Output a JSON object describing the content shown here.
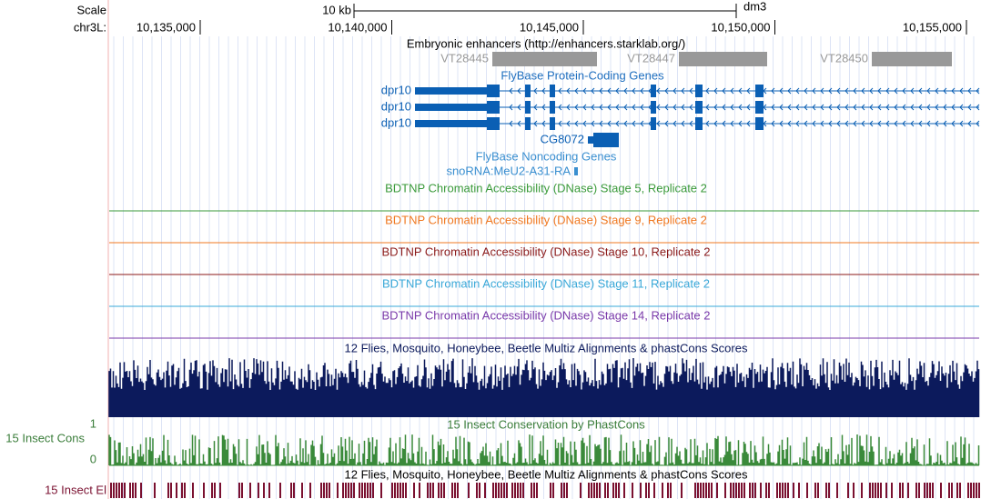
{
  "header": {
    "scale_label": "Scale",
    "chrom_label": "chr3L:",
    "scale_text": "10 kb",
    "assembly": "dm3"
  },
  "ruler": {
    "positions": [
      "10,135,000",
      "10,140,000",
      "10,145,000",
      "10,150,000",
      "10,155,000"
    ]
  },
  "enhancers": {
    "title": "Embryonic enhancers (http://enhancers.starklab.org/)",
    "items": [
      "VT28445",
      "VT28447",
      "VT28450"
    ]
  },
  "genes": {
    "coding_title": "FlyBase Protein-Coding Genes",
    "coding": [
      "dpr10",
      "dpr10",
      "dpr10",
      "CG8072"
    ],
    "noncoding_title": "FlyBase Noncoding Genes",
    "noncoding": [
      "snoRNA:MeU2-A31-RA"
    ]
  },
  "dnase_tracks": [
    {
      "label": "BDTNP Chromatin Accessibility (DNase) Stage 5, Replicate 2",
      "color": "#3a9a3a"
    },
    {
      "label": "BDTNP Chromatin Accessibility (DNase) Stage 9, Replicate 2",
      "color": "#f07820"
    },
    {
      "label": "BDTNP Chromatin Accessibility (DNase) Stage 10, Replicate 2",
      "color": "#8b1a1a"
    },
    {
      "label": "BDTNP Chromatin Accessibility (DNase) Stage 11, Replicate 2",
      "color": "#3aa8d8"
    },
    {
      "label": "BDTNP Chromatin Accessibility (DNase) Stage 14, Replicate 2",
      "color": "#7a3aaa"
    }
  ],
  "conservation": {
    "multiz_title": "12 Flies, Mosquito, Honeybee, Beetle Multiz Alignments & phastCons Scores",
    "phastcons_title": "15 Insect Conservation by PhastCons",
    "cons_label": "15 Insect Cons",
    "axis_top": "1",
    "axis_bottom": "0",
    "elements_title": "12 Flies, Mosquito, Honeybee, Beetle Multiz Alignments & phastCons Scores",
    "elements_label": "15 Insect El"
  }
}
